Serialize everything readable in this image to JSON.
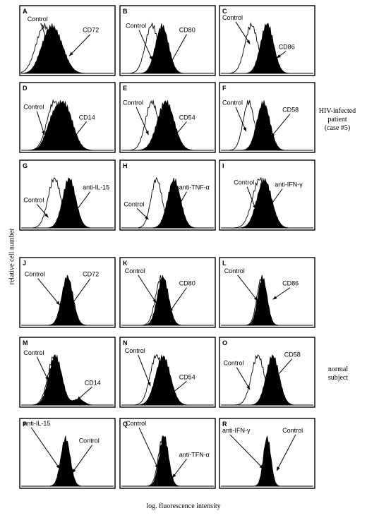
{
  "figure": {
    "ylabel": "relative cell number",
    "xlabel": "log. fluorescence intensity",
    "group_labels": [
      {
        "lines": [
          "HIV-infected",
          "patient",
          "(case #5)"
        ]
      },
      {
        "lines": [
          "normal",
          "subject"
        ]
      }
    ]
  },
  "colors": {
    "ink": "#000000",
    "control": "#ffffff",
    "frame": "#000000"
  },
  "chart_data": [
    {
      "type": "area",
      "letter": "A",
      "control_label": "Control",
      "stain_label": "CD72",
      "control_peak": 0.25,
      "control_width": 0.09,
      "stain_peak": 0.36,
      "stain_width": 0.1,
      "stain_peak2": 0.26,
      "stain_weight2": 0.35
    },
    {
      "type": "area",
      "letter": "B",
      "control_label": "Control",
      "stain_label": "CD80",
      "control_peak": 0.33,
      "control_width": 0.07,
      "stain_peak": 0.44,
      "stain_width": 0.07
    },
    {
      "type": "area",
      "letter": "C",
      "control_label": "Control",
      "stain_label": "CD86",
      "control_peak": 0.33,
      "control_width": 0.07,
      "stain_peak": 0.5,
      "stain_width": 0.07
    },
    {
      "type": "area",
      "letter": "D",
      "control_label": "Control",
      "stain_label": "CD14",
      "control_peak": 0.36,
      "control_width": 0.08,
      "stain_peak": 0.47,
      "stain_width": 0.09,
      "stain_peak2": 0.33,
      "stain_weight2": 0.5
    },
    {
      "type": "area",
      "letter": "E",
      "control_label": "Control",
      "stain_label": "CD54",
      "control_peak": 0.33,
      "control_width": 0.07,
      "stain_peak": 0.48,
      "stain_width": 0.09
    },
    {
      "type": "area",
      "letter": "F",
      "control_label": "Control",
      "stain_label": "CD58",
      "control_peak": 0.3,
      "control_width": 0.06,
      "stain_peak": 0.46,
      "stain_width": 0.07
    },
    {
      "type": "area",
      "letter": "G",
      "control_label": "Control",
      "stain_label": "anti-IL-15",
      "control_peak": 0.36,
      "control_width": 0.07,
      "stain_peak": 0.52,
      "stain_width": 0.07
    },
    {
      "type": "area",
      "letter": "H",
      "control_label": "Control",
      "stain_label": "anti-TNF-α",
      "control_peak": 0.38,
      "control_width": 0.06,
      "stain_peak": 0.57,
      "stain_width": 0.07
    },
    {
      "type": "area",
      "letter": "I",
      "control_label": "Control",
      "stain_label": "anti-IFN-γ",
      "control_peak": 0.42,
      "control_width": 0.08,
      "stain_peak": 0.47,
      "stain_width": 0.08
    },
    {
      "type": "area",
      "letter": "J",
      "control_label": "Control",
      "stain_label": "CD72",
      "control_peak": 0.5,
      "control_width": 0.06,
      "stain_peak": 0.5,
      "stain_width": 0.06
    },
    {
      "type": "area",
      "letter": "K",
      "control_label": "Control",
      "stain_label": "CD80",
      "control_peak": 0.43,
      "control_width": 0.06,
      "stain_peak": 0.45,
      "stain_width": 0.06
    },
    {
      "type": "area",
      "letter": "L",
      "control_label": "Control",
      "stain_label": "CD86",
      "control_peak": 0.44,
      "control_width": 0.05,
      "stain_peak": 0.45,
      "stain_width": 0.05
    },
    {
      "type": "area",
      "letter": "M",
      "control_label": "Control",
      "stain_label": "CD14",
      "control_peak": 0.36,
      "control_width": 0.07,
      "stain_peak": 0.37,
      "stain_width": 0.07,
      "stain_peak2": 0.62,
      "stain_weight2": 0.12
    },
    {
      "type": "area",
      "letter": "N",
      "control_label": "Control",
      "stain_label": "CD54",
      "control_peak": 0.38,
      "control_width": 0.07,
      "stain_peak": 0.45,
      "stain_width": 0.08
    },
    {
      "type": "area",
      "letter": "O",
      "control_label": "Control",
      "stain_label": "CD58",
      "control_peak": 0.4,
      "control_width": 0.07,
      "stain_peak": 0.56,
      "stain_width": 0.07
    },
    {
      "type": "area",
      "letter": "P",
      "control_label": "Control",
      "stain_label": "anti-IL-15",
      "control_peak": 0.48,
      "control_width": 0.05,
      "stain_peak": 0.48,
      "stain_width": 0.05
    },
    {
      "type": "area",
      "letter": "Q",
      "control_label": "Control",
      "stain_label": "anti-TFN-α",
      "control_peak": 0.45,
      "control_width": 0.05,
      "stain_peak": 0.46,
      "stain_width": 0.05
    },
    {
      "type": "area",
      "letter": "R",
      "control_label": "Control",
      "stain_label": "anti-IFN-γ",
      "control_peak": 0.5,
      "control_width": 0.04,
      "stain_peak": 0.5,
      "stain_width": 0.04
    }
  ]
}
